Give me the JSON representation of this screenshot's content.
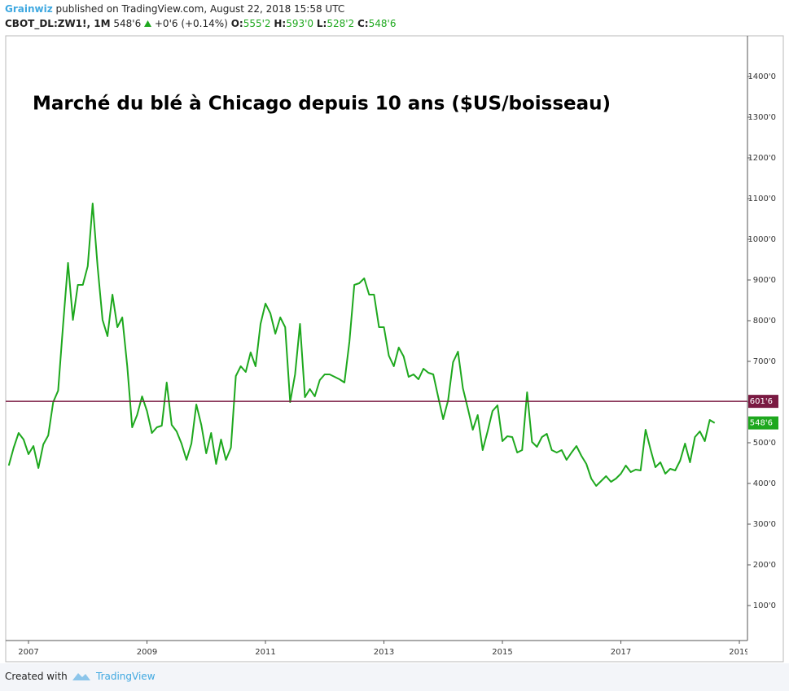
{
  "header": {
    "author": "Grainwiz",
    "published": "published on TradingView.com, August 22, 2018 15:58 UTC"
  },
  "legend": {
    "symbol": "CBOT_DL:ZW1!, 1M",
    "last": "548'6",
    "change": "+0'6 (+0.14%)",
    "open_label": "O:",
    "open": "555'2",
    "high_label": "H:",
    "high": "593'0",
    "low_label": "L:",
    "low": "528'2",
    "close_label": "C:",
    "close": "548'6"
  },
  "chart_data": {
    "type": "line",
    "title": "Marché du blé à Chicago depuis 10 ans ($US/boisseau)",
    "color": "#1ea81e",
    "x": [
      2006.667,
      2006.75,
      2006.833,
      2006.917,
      2007,
      2007.083,
      2007.167,
      2007.25,
      2007.333,
      2007.417,
      2007.5,
      2007.583,
      2007.667,
      2007.75,
      2007.833,
      2007.917,
      2008,
      2008.083,
      2008.167,
      2008.25,
      2008.333,
      2008.417,
      2008.5,
      2008.583,
      2008.667,
      2008.75,
      2008.833,
      2008.917,
      2009,
      2009.083,
      2009.167,
      2009.25,
      2009.333,
      2009.417,
      2009.5,
      2009.583,
      2009.667,
      2009.75,
      2009.833,
      2009.917,
      2010,
      2010.083,
      2010.167,
      2010.25,
      2010.333,
      2010.417,
      2010.5,
      2010.583,
      2010.667,
      2010.75,
      2010.833,
      2010.917,
      2011,
      2011.083,
      2011.167,
      2011.25,
      2011.333,
      2011.417,
      2011.5,
      2011.583,
      2011.667,
      2011.75,
      2011.833,
      2011.917,
      2012,
      2012.083,
      2012.167,
      2012.25,
      2012.333,
      2012.417,
      2012.5,
      2012.583,
      2012.667,
      2012.75,
      2012.833,
      2012.917,
      2013,
      2013.083,
      2013.167,
      2013.25,
      2013.333,
      2013.417,
      2013.5,
      2013.583,
      2013.667,
      2013.75,
      2013.833,
      2013.917,
      2014,
      2014.083,
      2014.167,
      2014.25,
      2014.333,
      2014.417,
      2014.5,
      2014.583,
      2014.667,
      2014.75,
      2014.833,
      2014.917,
      2015,
      2015.083,
      2015.167,
      2015.25,
      2015.333,
      2015.417,
      2015.5,
      2015.583,
      2015.667,
      2015.75,
      2015.833,
      2015.917,
      2016,
      2016.083,
      2016.167,
      2016.25,
      2016.333,
      2016.417,
      2016.5,
      2016.583,
      2016.667,
      2016.75,
      2016.833,
      2016.917,
      2017,
      2017.083,
      2017.167,
      2017.25,
      2017.333,
      2017.417,
      2017.5,
      2017.583,
      2017.667,
      2017.75,
      2017.833,
      2017.917,
      2018,
      2018.083,
      2018.167,
      2018.25,
      2018.333,
      2018.417,
      2018.5,
      2018.583
    ],
    "values": [
      444,
      488,
      524,
      508,
      472,
      492,
      438,
      496,
      518,
      600,
      628,
      788,
      942,
      802,
      888,
      888,
      934,
      1088,
      932,
      802,
      762,
      864,
      784,
      808,
      688,
      538,
      568,
      614,
      578,
      524,
      538,
      542,
      648,
      544,
      528,
      498,
      458,
      498,
      594,
      544,
      474,
      524,
      448,
      508,
      458,
      488,
      664,
      688,
      674,
      722,
      688,
      792,
      842,
      818,
      768,
      808,
      784,
      600,
      668,
      792,
      612,
      632,
      614,
      654,
      668,
      668,
      662,
      656,
      648,
      748,
      888,
      892,
      904,
      864,
      864,
      784,
      784,
      714,
      688,
      734,
      712,
      662,
      668,
      656,
      682,
      672,
      668,
      612,
      558,
      604,
      698,
      724,
      634,
      584,
      532,
      568,
      482,
      528,
      578,
      592,
      504,
      516,
      514,
      476,
      482,
      624,
      502,
      490,
      514,
      522,
      482,
      476,
      482,
      458,
      476,
      492,
      468,
      448,
      412,
      394,
      406,
      418,
      404,
      412,
      424,
      444,
      428,
      434,
      432,
      532,
      484,
      440,
      452,
      424,
      436,
      432,
      456,
      498,
      452,
      514,
      528,
      504,
      556,
      548.75
    ],
    "xlim": [
      2006.615,
      2019.137
    ],
    "xticks": [
      2007,
      2009,
      2011,
      2013,
      2015,
      2017,
      2019
    ],
    "ylim": [
      14,
      1500
    ],
    "yticks": [
      {
        "value": 100,
        "label": "100'0"
      },
      {
        "value": 200,
        "label": "200'0"
      },
      {
        "value": 300,
        "label": "300'0"
      },
      {
        "value": 400,
        "label": "400'0"
      },
      {
        "value": 500,
        "label": "500'0"
      },
      {
        "value": 600,
        "label": "600'0"
      },
      {
        "value": 700,
        "label": "700'0"
      },
      {
        "value": 800,
        "label": "800'0"
      },
      {
        "value": 900,
        "label": "900'0"
      },
      {
        "value": 1000,
        "label": "1000'0"
      },
      {
        "value": 1100,
        "label": "1100'0"
      },
      {
        "value": 1200,
        "label": "1200'0"
      },
      {
        "value": 1300,
        "label": "1300'0"
      },
      {
        "value": 1400,
        "label": "1400'0"
      }
    ],
    "price_lines": [
      {
        "value": 601.75,
        "label": "601'6",
        "color": "#7a1a42"
      },
      {
        "value": 548.75,
        "label": "548'6",
        "color": "#1ea81e"
      }
    ]
  },
  "footer": {
    "created": "Created with",
    "brand": "TradingView"
  }
}
